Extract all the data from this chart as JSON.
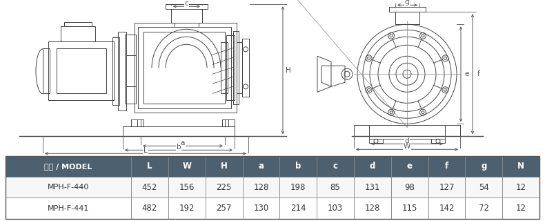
{
  "header": [
    "型式 / MODEL",
    "L",
    "W",
    "H",
    "a",
    "b",
    "c",
    "d",
    "e",
    "f",
    "g",
    "N"
  ],
  "rows": [
    [
      "MPH-F-440",
      "452",
      "156",
      "225",
      "128",
      "198",
      "85",
      "131",
      "98",
      "127",
      "54",
      "12"
    ],
    [
      "MPH-F-441",
      "482",
      "192",
      "257",
      "130",
      "214",
      "103",
      "128",
      "115",
      "142",
      "72",
      "12"
    ]
  ],
  "header_bg": "#4d6070",
  "header_fg": "#ffffff",
  "row0_bg": "#f7f7f7",
  "row1_bg": "#ffffff",
  "row_fg": "#333333",
  "fig_bg": "#ffffff",
  "col_widths": [
    2.2,
    0.65,
    0.65,
    0.65,
    0.65,
    0.65,
    0.65,
    0.65,
    0.65,
    0.65,
    0.65,
    0.65
  ],
  "lc": "#444444",
  "lc_dim": "#555555",
  "lc_thin": "#888888"
}
